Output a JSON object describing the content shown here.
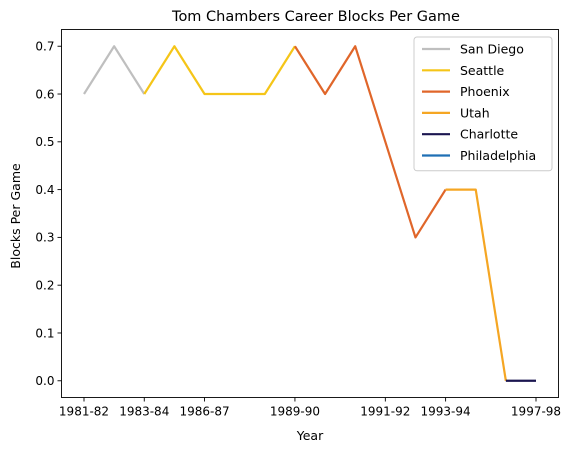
{
  "chart_data": {
    "type": "line",
    "title": "Tom Chambers  Career Blocks Per Game",
    "xlabel": "Year",
    "ylabel": "Blocks Per Game",
    "x_ticks": [
      "1981-82",
      "1983-84",
      "1986-87",
      "1989-90",
      "1991-92",
      "1993-94",
      "1997-98"
    ],
    "ylim": [
      -0.035,
      0.735
    ],
    "y_ticks": [
      "0.0",
      "0.1",
      "0.2",
      "0.3",
      "0.4",
      "0.5",
      "0.6",
      "0.7"
    ],
    "legend_position": "top-right",
    "series": [
      {
        "name": "San Diego",
        "color": "#bfbfbf",
        "points": [
          [
            0,
            0.6
          ],
          [
            1,
            0.7
          ],
          [
            2,
            0.6
          ]
        ]
      },
      {
        "name": "Seattle",
        "color": "#f5c518",
        "points": [
          [
            2,
            0.6
          ],
          [
            3,
            0.7
          ],
          [
            4,
            0.6
          ],
          [
            5,
            0.6
          ],
          [
            6,
            0.6
          ],
          [
            7,
            0.7
          ]
        ]
      },
      {
        "name": "Phoenix",
        "color": "#e0662a",
        "points": [
          [
            7,
            0.7
          ],
          [
            8,
            0.6
          ],
          [
            9,
            0.7
          ],
          [
            10,
            0.5
          ],
          [
            11,
            0.3
          ],
          [
            12,
            0.4
          ]
        ]
      },
      {
        "name": "Utah",
        "color": "#f5a623",
        "points": [
          [
            12,
            0.4
          ],
          [
            13,
            0.4
          ],
          [
            14,
            0.0
          ]
        ]
      },
      {
        "name": "Charlotte",
        "color": "#1b1650",
        "points": [
          [
            14,
            0.0
          ],
          [
            15,
            0.0
          ]
        ]
      },
      {
        "name": "Philadelphia",
        "color": "#1f6fb5",
        "points": []
      }
    ]
  }
}
